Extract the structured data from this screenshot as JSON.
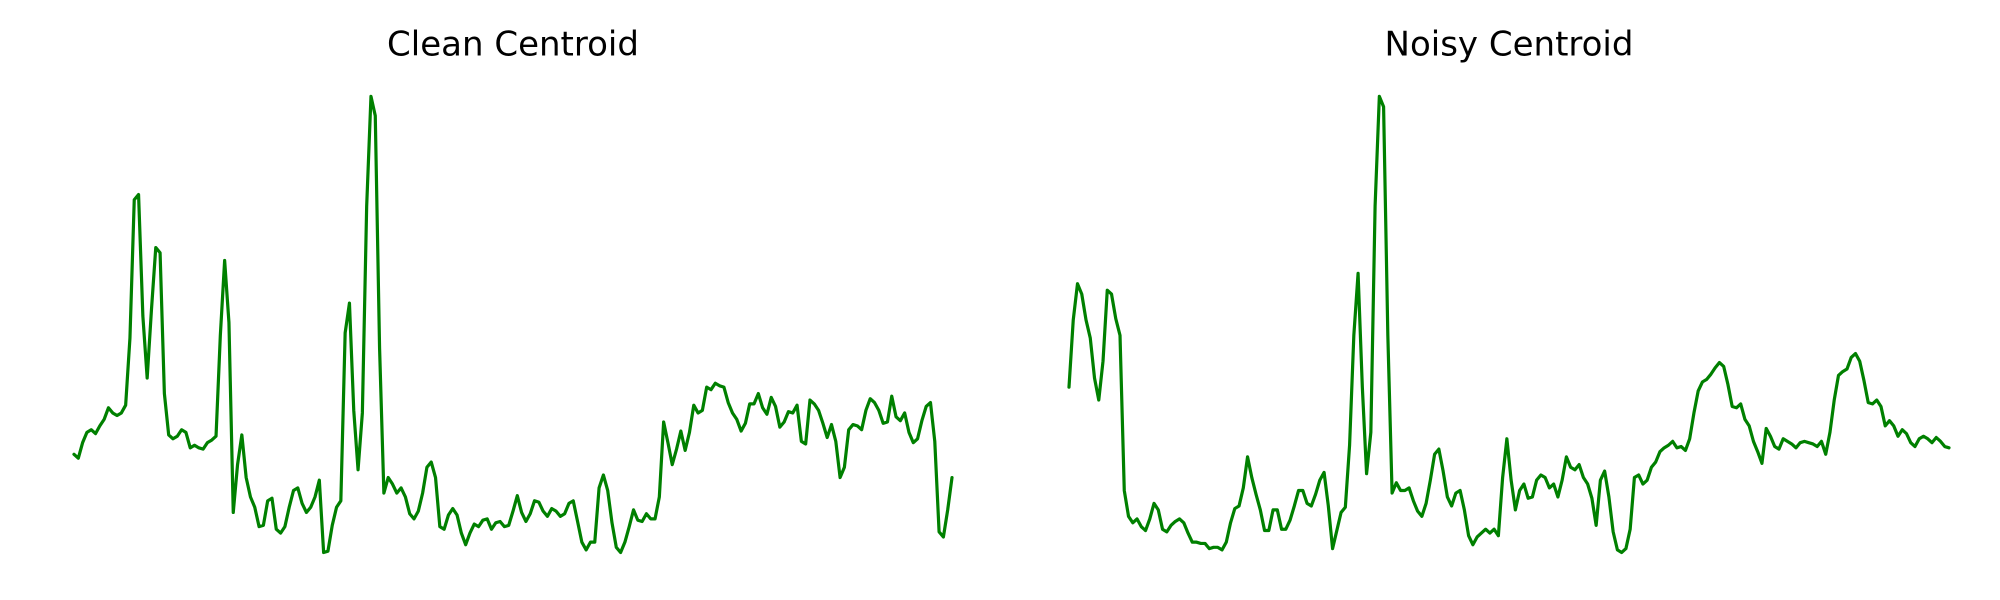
{
  "chart_data": [
    {
      "type": "line",
      "title": "Clean Centroid",
      "color": "#008000",
      "ylim": [
        0,
        380
      ],
      "values": [
        88,
        85,
        97,
        105,
        107,
        104,
        110,
        115,
        124,
        120,
        118,
        120,
        126,
        178,
        285,
        289,
        195,
        147,
        200,
        248,
        244,
        135,
        103,
        100,
        102,
        107,
        105,
        93,
        95,
        93,
        92,
        97,
        99,
        102,
        180,
        238,
        190,
        43,
        80,
        103,
        70,
        55,
        47,
        32,
        33,
        52,
        54,
        30,
        27,
        32,
        47,
        60,
        62,
        50,
        43,
        47,
        55,
        68,
        12,
        13,
        33,
        47,
        52,
        182,
        205,
        122,
        76,
        120,
        280,
        365,
        350,
        170,
        58,
        70,
        65,
        58,
        62,
        55,
        42,
        38,
        44,
        58,
        78,
        82,
        70,
        32,
        30,
        41,
        46,
        41,
        27,
        18,
        27,
        34,
        32,
        37,
        38,
        30,
        35,
        36,
        32,
        33,
        44,
        56,
        43,
        36,
        42,
        52,
        51,
        44,
        40,
        46,
        44,
        40,
        42,
        50,
        52,
        36,
        20,
        14,
        20,
        20,
        62,
        72,
        60,
        35,
        16,
        12,
        20,
        32,
        45,
        37,
        36,
        42,
        38,
        38,
        55,
        113,
        97,
        80,
        92,
        106,
        91,
        105,
        126,
        120,
        122,
        140,
        138,
        143,
        141,
        140,
        128,
        120,
        115,
        106,
        112,
        127,
        127,
        135,
        124,
        119,
        132,
        125,
        109,
        113,
        121,
        120,
        126,
        98,
        96,
        130,
        127,
        122,
        112,
        101,
        111,
        98,
        70,
        78,
        107,
        111,
        110,
        107,
        122,
        131,
        128,
        122,
        112,
        113,
        133,
        117,
        114,
        120,
        105,
        97,
        100,
        114,
        125,
        128,
        98,
        28,
        24,
        45,
        70
      ]
    },
    {
      "type": "line",
      "title": "Noisy Centroid",
      "color": "#008000",
      "ylim": [
        0,
        380
      ],
      "values": [
        140,
        192,
        220,
        212,
        192,
        178,
        147,
        130,
        160,
        215,
        212,
        193,
        180,
        60,
        40,
        35,
        38,
        32,
        29,
        38,
        50,
        45,
        30,
        28,
        33,
        36,
        38,
        35,
        27,
        20,
        20,
        19,
        19,
        15,
        16,
        16,
        14,
        20,
        35,
        46,
        48,
        62,
        86,
        70,
        57,
        45,
        29,
        29,
        45,
        45,
        30,
        30,
        37,
        48,
        60,
        60,
        50,
        48,
        57,
        68,
        74,
        48,
        15,
        29,
        43,
        47,
        95,
        180,
        228,
        140,
        73,
        105,
        280,
        365,
        357,
        180,
        58,
        66,
        60,
        60,
        62,
        52,
        44,
        40,
        50,
        68,
        88,
        92,
        75,
        55,
        48,
        58,
        60,
        45,
        25,
        18,
        24,
        27,
        30,
        27,
        30,
        25,
        70,
        100,
        68,
        45,
        60,
        65,
        54,
        55,
        68,
        72,
        70,
        62,
        65,
        55,
        68,
        86,
        78,
        76,
        80,
        70,
        65,
        54,
        33,
        68,
        75,
        55,
        28,
        14,
        12,
        15,
        30,
        70,
        72,
        65,
        68,
        78,
        82,
        90,
        93,
        95,
        98,
        93,
        94,
        91,
        100,
        120,
        137,
        144,
        146,
        150,
        155,
        159,
        156,
        142,
        125,
        124,
        127,
        115,
        110,
        98,
        90,
        81,
        108,
        102,
        94,
        92,
        100,
        98,
        96,
        93,
        97,
        98,
        97,
        96,
        94,
        98,
        88,
        105,
        130,
        149,
        152,
        154,
        163,
        166,
        160,
        145,
        128,
        127,
        130,
        125,
        110,
        114,
        110,
        102,
        107,
        104,
        97,
        94,
        100,
        102,
        100,
        97,
        101,
        98,
        94,
        93
      ]
    }
  ]
}
